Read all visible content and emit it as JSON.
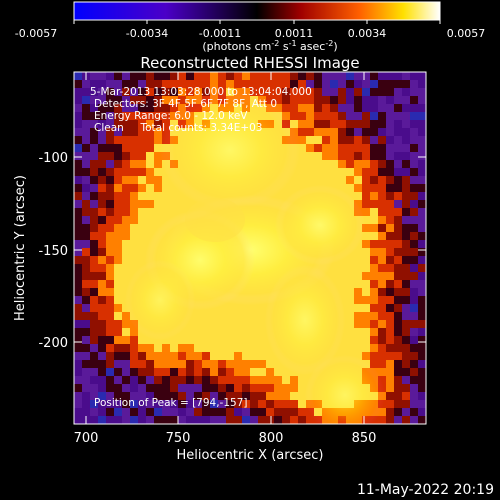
{
  "colorbar": {
    "tick_labels": [
      "-0.0057",
      "-0.0034",
      "-0.0011",
      "0.0011",
      "0.0034",
      "0.0057"
    ],
    "unit_label": "(photons cm",
    "unit_sup1": "-2",
    "unit_mid": " s",
    "unit_sup2": "-1",
    "unit_end": " asec",
    "unit_sup3": "-2",
    "unit_close": ")",
    "colors": [
      "#0000ff",
      "#4b00c8",
      "#000000",
      "#a00000",
      "#ff6000",
      "#ffe000",
      "#ffffff"
    ]
  },
  "annotations": {
    "time_range": "5-Mar-2013 13:03:28.000 to 13:04:04.000",
    "detectors": "Detectors: 3F 4F 5F 6F 7F 8F, Att 0",
    "energy": "Energy Range: 6.0 - 12.0 keV",
    "method": "Clean     Total counts: 3.34E+03",
    "peak": "Position of Peak = [794,-157]"
  },
  "footer_date": "11-May-2022 20:19",
  "chart_data": {
    "type": "heatmap",
    "title": "Reconstructed RHESSI Image",
    "xlabel": "Heliocentric X (arcsec)",
    "ylabel": "Heliocentric Y (arcsec)",
    "xlim": [
      696,
      886
    ],
    "ylim": [
      -247,
      -57
    ],
    "x_ticks": [
      700,
      750,
      800,
      850
    ],
    "y_ticks": [
      -100,
      -150,
      -200
    ],
    "value_range": [
      -0.0057,
      0.0057
    ],
    "peak": [
      794,
      -157
    ]
  }
}
